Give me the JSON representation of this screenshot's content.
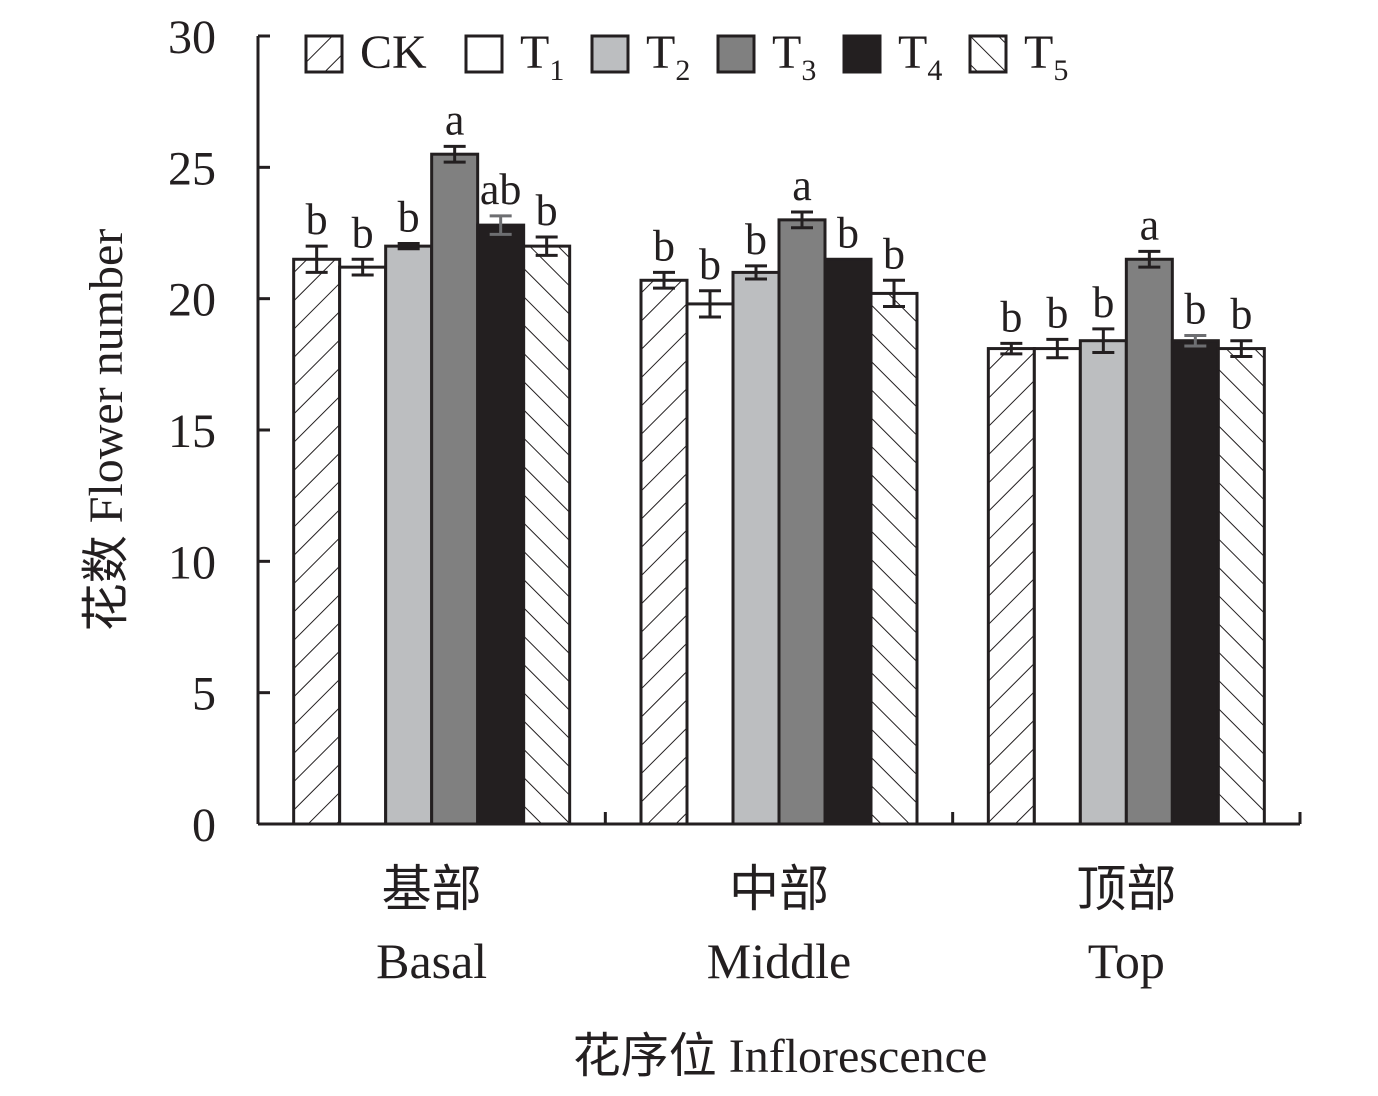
{
  "chart_data": {
    "type": "bar",
    "categories": [
      "基部|Basal",
      "中部|Middle",
      "顶部|Top"
    ],
    "category_lines": [
      [
        "基部",
        "Basal"
      ],
      [
        "中部",
        "Middle"
      ],
      [
        "顶部",
        "Top"
      ]
    ],
    "ylabel": "花数 Flower number",
    "xlabel": "花序位 Inflorescence",
    "ylim": [
      0,
      30
    ],
    "yticks": [
      0,
      5,
      10,
      15,
      20,
      25,
      30
    ],
    "legend_position": "top",
    "series": [
      {
        "name": "CK",
        "label_main": "CK",
        "label_sub": "",
        "pattern": "hatch-back",
        "color": "#ffffff",
        "values": [
          21.5,
          20.7,
          18.1
        ],
        "errors": [
          0.5,
          0.3,
          0.2
        ],
        "letters": [
          "b",
          "b",
          "b"
        ]
      },
      {
        "name": "T1",
        "label_main": "T",
        "label_sub": "1",
        "pattern": "solid",
        "color": "#ffffff",
        "values": [
          21.2,
          19.8,
          18.1
        ],
        "errors": [
          0.3,
          0.5,
          0.35
        ],
        "letters": [
          "b",
          "b",
          "b"
        ]
      },
      {
        "name": "T2",
        "label_main": "T",
        "label_sub": "2",
        "pattern": "solid",
        "color": "#bcbec0",
        "values": [
          22.0,
          21.0,
          18.4
        ],
        "errors": [
          0.1,
          0.25,
          0.45
        ],
        "letters": [
          "b",
          "b",
          "b"
        ]
      },
      {
        "name": "T3",
        "label_main": "T",
        "label_sub": "3",
        "pattern": "solid",
        "color": "#808080",
        "values": [
          25.5,
          23.0,
          21.5
        ],
        "errors": [
          0.3,
          0.3,
          0.3
        ],
        "letters": [
          "a",
          "a",
          "a"
        ]
      },
      {
        "name": "T4",
        "label_main": "T",
        "label_sub": "4",
        "pattern": "solid",
        "color": "#231f20",
        "values": [
          22.8,
          21.5,
          18.4
        ],
        "errors": [
          0.35,
          0.0,
          0.2
        ],
        "letters": [
          "ab",
          "b",
          "b"
        ]
      },
      {
        "name": "T5",
        "label_main": "T",
        "label_sub": "5",
        "pattern": "hatch-fwd",
        "color": "#ffffff",
        "values": [
          22.0,
          20.2,
          18.1
        ],
        "errors": [
          0.35,
          0.5,
          0.3
        ],
        "letters": [
          "b",
          "b",
          "b"
        ]
      }
    ]
  }
}
